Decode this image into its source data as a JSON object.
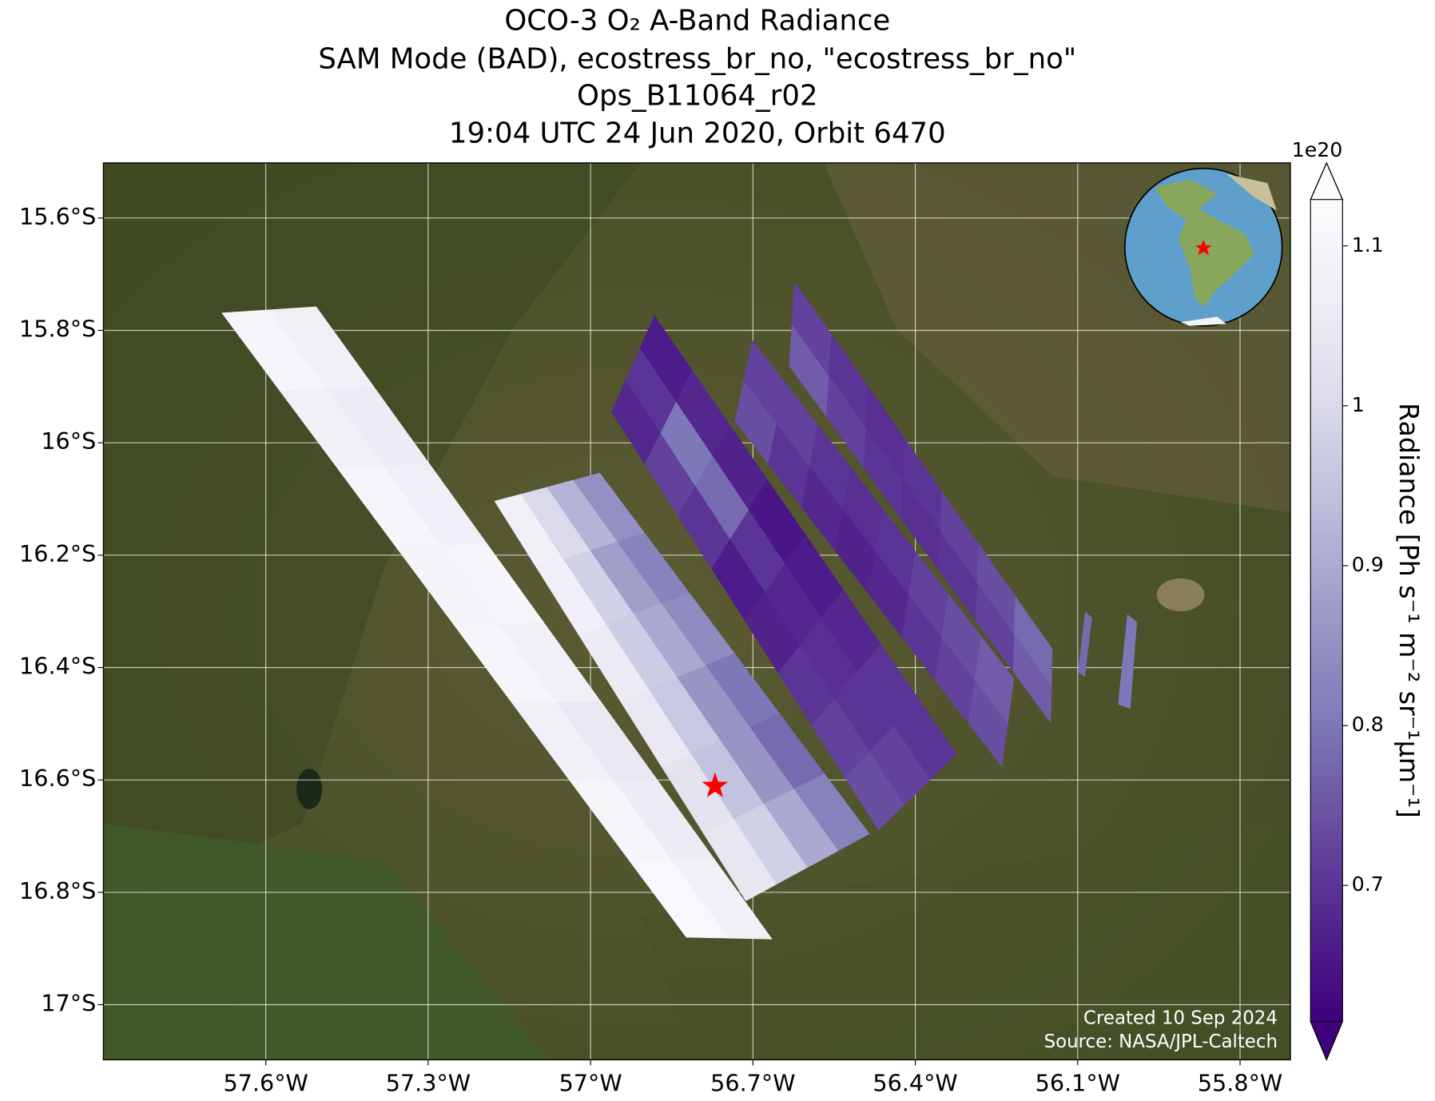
{
  "chart_data": {
    "type": "swath-map",
    "title_lines": [
      "OCO-3 O₂ A-Band Radiance",
      "SAM Mode (BAD), ecostress_br_no, \"ecostress_br_no\"",
      "Ops_B11064_r02",
      "19:04 UTC 24 Jun 2020, Orbit 6470"
    ],
    "xlim": [
      -57.9,
      -55.707
    ],
    "ylim": [
      -17.098,
      -15.502
    ],
    "xticks": [
      {
        "value": -57.6,
        "label": "57.6°W"
      },
      {
        "value": -57.3,
        "label": "57.3°W"
      },
      {
        "value": -57.0,
        "label": "57°W"
      },
      {
        "value": -56.7,
        "label": "56.7°W"
      },
      {
        "value": -56.4,
        "label": "56.4°W"
      },
      {
        "value": -56.1,
        "label": "56.1°W"
      },
      {
        "value": -55.8,
        "label": "55.8°W"
      }
    ],
    "yticks": [
      {
        "value": -15.6,
        "label": "15.6°S"
      },
      {
        "value": -15.8,
        "label": "15.8°S"
      },
      {
        "value": -16.0,
        "label": "16°S"
      },
      {
        "value": -16.2,
        "label": "16.2°S"
      },
      {
        "value": -16.4,
        "label": "16.4°S"
      },
      {
        "value": -16.6,
        "label": "16.6°S"
      },
      {
        "value": -16.8,
        "label": "16.8°S"
      },
      {
        "value": -17.0,
        "label": "17°S"
      }
    ],
    "grid": true,
    "colormap": [
      "#3f007d",
      "#54278f",
      "#6a51a3",
      "#807dba",
      "#9e9ac8",
      "#bcbddc",
      "#dadaeb",
      "#efedf5",
      "#fcfbfd"
    ],
    "colorbar": {
      "label": "Radiance [Ph s⁻¹ m⁻² sr⁻¹μm⁻¹]",
      "offset_text": "1e20",
      "clim": [
        0.615,
        1.129
      ],
      "ticks": [
        0.7,
        0.8,
        0.9,
        1.0,
        1.1
      ],
      "extend": "both"
    },
    "swaths": [
      {
        "corners": [
          [
            -57.681,
            -15.769
          ],
          [
            -57.507,
            -15.758
          ],
          [
            -56.665,
            -16.883
          ],
          [
            -56.823,
            -16.88
          ]
        ],
        "values": [
          [
            1.1,
            1.08
          ],
          [
            1.08,
            1.06
          ],
          [
            1.1,
            1.07
          ],
          [
            1.09,
            1.1
          ],
          [
            1.1,
            1.08
          ],
          [
            1.08,
            1.05
          ],
          [
            1.1,
            1.06
          ],
          [
            1.11,
            1.08
          ]
        ]
      },
      {
        "corners": [
          [
            -57.177,
            -16.104
          ],
          [
            -56.983,
            -16.054
          ],
          [
            -56.485,
            -16.696
          ],
          [
            -56.713,
            -16.815
          ]
        ],
        "values": [
          [
            1.08,
            1.0,
            0.92,
            0.85
          ],
          [
            1.07,
            0.98,
            0.88,
            0.82
          ],
          [
            1.06,
            0.97,
            0.9,
            0.84
          ],
          [
            1.05,
            0.96,
            0.86,
            0.8
          ],
          [
            1.03,
            0.95,
            0.86,
            0.78
          ],
          [
            1.04,
            0.98,
            0.9,
            0.82
          ]
        ]
      },
      {
        "corners": [
          [
            -56.961,
            -15.945
          ],
          [
            -56.882,
            -15.774
          ],
          [
            -56.324,
            -16.554
          ],
          [
            -56.468,
            -16.689
          ]
        ],
        "values": [
          [
            0.68,
            0.7,
            0.66
          ],
          [
            0.72,
            0.8,
            0.68
          ],
          [
            0.7,
            0.78,
            0.67
          ],
          [
            0.66,
            0.7,
            0.65
          ],
          [
            0.67,
            0.68,
            0.66
          ],
          [
            0.7,
            0.69,
            0.68
          ],
          [
            0.72,
            0.7,
            0.7
          ],
          [
            0.74,
            0.72,
            0.7
          ]
        ]
      },
      {
        "corners": [
          [
            -56.733,
            -15.961
          ],
          [
            -56.701,
            -15.818
          ],
          [
            -56.218,
            -16.42
          ],
          [
            -56.24,
            -16.576
          ]
        ],
        "values": [
          [
            0.74,
            0.72
          ],
          [
            0.7,
            0.72
          ],
          [
            0.68,
            0.7
          ],
          [
            0.67,
            0.69
          ],
          [
            0.68,
            0.7
          ],
          [
            0.7,
            0.72
          ],
          [
            0.72,
            0.74
          ],
          [
            0.74,
            0.76
          ]
        ]
      },
      {
        "corners": [
          [
            -56.633,
            -15.863
          ],
          [
            -56.623,
            -15.714
          ],
          [
            -56.147,
            -16.367
          ],
          [
            -56.15,
            -16.498
          ]
        ],
        "values": [
          [
            0.76,
            0.72
          ],
          [
            0.72,
            0.7
          ],
          [
            0.7,
            0.69
          ],
          [
            0.69,
            0.7
          ],
          [
            0.7,
            0.72
          ],
          [
            0.72,
            0.74
          ],
          [
            0.76,
            0.78
          ]
        ]
      },
      {
        "corners": [
          [
            -56.099,
            -16.408
          ],
          [
            -56.086,
            -16.302
          ],
          [
            -56.074,
            -16.311
          ],
          [
            -56.087,
            -16.416
          ]
        ],
        "values": [
          [
            0.78
          ]
        ]
      },
      {
        "corners": [
          [
            -56.025,
            -16.465
          ],
          [
            -56.008,
            -16.306
          ],
          [
            -55.991,
            -16.319
          ],
          [
            -56.003,
            -16.473
          ]
        ],
        "values": [
          [
            0.8
          ]
        ]
      }
    ],
    "target": {
      "lon": -56.77,
      "lat": -16.611,
      "color": "#ff0000"
    },
    "credits": [
      "Created 10 Sep 2024",
      "Source: NASA/JPL-Caltech"
    ]
  }
}
